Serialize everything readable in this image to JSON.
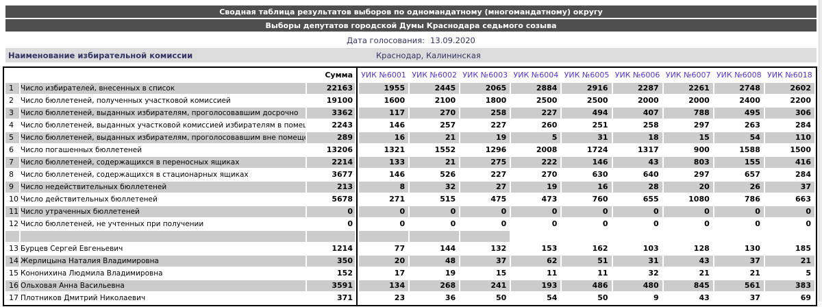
{
  "header": {
    "title1": "Сводная таблица результатов выборов по одномандатному (многомандатному) округу",
    "title2": "Выборы депутатов городской Думы Краснодара седьмого созыва",
    "date_label": "Дата голосования:",
    "date_value": "13.09.2020",
    "commission_label": "Наименование избирательной комиссии",
    "commission_value": "Краснодар, Калининская"
  },
  "colors": {
    "title_bar_bg": "#4f4f4f",
    "shaded_row_bg": "#cccccc",
    "commission_row_bg": "#dcdcdc",
    "navy_text": "#333366",
    "uik_link_color": "#5533cc"
  },
  "table": {
    "sum_header": "Сумма",
    "uik_headers": [
      "УИК №6001",
      "УИК №6002",
      "УИК №6003",
      "УИК №6004",
      "УИК №6005",
      "УИК №6006",
      "УИК №6007",
      "УИК №6008",
      "УИК №6018"
    ],
    "rows": [
      {
        "type": "data",
        "kind": "stat",
        "num": "1",
        "label": "Число избирателей, внесенных в список",
        "sum": "22163",
        "values": [
          "1955",
          "2445",
          "2065",
          "2884",
          "2916",
          "2287",
          "2261",
          "2748",
          "2602"
        ],
        "shaded": true
      },
      {
        "type": "data",
        "kind": "stat",
        "num": "2",
        "label": "Число бюллетеней, полученных участковой комиссией",
        "sum": "19100",
        "values": [
          "1600",
          "2100",
          "1800",
          "2500",
          "2500",
          "2000",
          "2000",
          "2400",
          "2200"
        ],
        "shaded": false
      },
      {
        "type": "data",
        "kind": "stat",
        "num": "3",
        "label": "Число бюллетеней, выданных избирателям, проголосовавшим досрочно",
        "sum": "3362",
        "values": [
          "117",
          "270",
          "258",
          "227",
          "494",
          "407",
          "788",
          "495",
          "306"
        ],
        "shaded": true
      },
      {
        "type": "data",
        "kind": "stat",
        "num": "4",
        "label": "Число бюллетеней, выданных участковой комиссией избирателям в помещении",
        "sum": "2243",
        "values": [
          "146",
          "257",
          "227",
          "260",
          "251",
          "258",
          "297",
          "263",
          "284"
        ],
        "shaded": false
      },
      {
        "type": "data",
        "kind": "stat",
        "num": "5",
        "label": "Число бюллетеней, выданных избирателям, проголосовавшим вне помещения",
        "sum": "289",
        "values": [
          "16",
          "21",
          "19",
          "5",
          "31",
          "18",
          "15",
          "54",
          "110"
        ],
        "shaded": true
      },
      {
        "type": "data",
        "kind": "stat",
        "num": "6",
        "label": "Число погашенных бюллетеней",
        "sum": "13206",
        "values": [
          "1321",
          "1552",
          "1296",
          "2008",
          "1724",
          "1317",
          "900",
          "1588",
          "1500"
        ],
        "shaded": false
      },
      {
        "type": "data",
        "kind": "stat",
        "num": "7",
        "label": "Число бюллетеней, содержащихся в переносных ящиках",
        "sum": "2214",
        "values": [
          "133",
          "21",
          "275",
          "222",
          "146",
          "43",
          "803",
          "155",
          "416"
        ],
        "shaded": true
      },
      {
        "type": "data",
        "kind": "stat",
        "num": "8",
        "label": "Число бюллетеней, содержащихся в стационарных ящиках",
        "sum": "3677",
        "values": [
          "146",
          "526",
          "227",
          "270",
          "630",
          "640",
          "297",
          "657",
          "284"
        ],
        "shaded": false
      },
      {
        "type": "data",
        "kind": "stat",
        "num": "9",
        "label": "Число недействительных бюллетеней",
        "sum": "213",
        "values": [
          "8",
          "32",
          "27",
          "19",
          "16",
          "28",
          "20",
          "26",
          "37"
        ],
        "shaded": true
      },
      {
        "type": "data",
        "kind": "stat",
        "num": "10",
        "label": "Число действительных бюллетеней",
        "sum": "5678",
        "values": [
          "271",
          "515",
          "475",
          "473",
          "760",
          "655",
          "1080",
          "786",
          "663"
        ],
        "shaded": false
      },
      {
        "type": "data",
        "kind": "stat",
        "num": "11",
        "label": "Число утраченных бюллетеней",
        "sum": "0",
        "values": [
          "0",
          "0",
          "0",
          "0",
          "0",
          "0",
          "0",
          "0",
          "0"
        ],
        "shaded": true
      },
      {
        "type": "data",
        "kind": "stat",
        "num": "12",
        "label": "Число бюллетеней, не учтенных при получении",
        "sum": "0",
        "values": [
          "0",
          "0",
          "0",
          "0",
          "0",
          "0",
          "0",
          "0",
          "0"
        ],
        "shaded": false
      },
      {
        "type": "separator",
        "shaded_uik_cells": 3
      },
      {
        "type": "data",
        "kind": "candidate",
        "num": "13",
        "label": "Бурцев Сергей Евгеньевич",
        "sum": "1214",
        "values": [
          "77",
          "144",
          "132",
          "153",
          "162",
          "103",
          "128",
          "130",
          "185"
        ],
        "shaded": false
      },
      {
        "type": "data",
        "kind": "candidate",
        "num": "14",
        "label": "Жерлицына Наталия Владимировна",
        "sum": "350",
        "values": [
          "20",
          "48",
          "37",
          "62",
          "51",
          "31",
          "43",
          "37",
          "21"
        ],
        "shaded": true
      },
      {
        "type": "data",
        "kind": "candidate",
        "num": "15",
        "label": "Кононихина Людмила Владимировна",
        "sum": "152",
        "values": [
          "17",
          "19",
          "15",
          "11",
          "11",
          "32",
          "21",
          "21",
          "5"
        ],
        "shaded": false
      },
      {
        "type": "data",
        "kind": "candidate",
        "num": "16",
        "label": "Ольховая Анна Васильевна",
        "sum": "3591",
        "values": [
          "134",
          "268",
          "241",
          "193",
          "486",
          "480",
          "845",
          "561",
          "383"
        ],
        "shaded": true
      },
      {
        "type": "data",
        "kind": "candidate",
        "num": "17",
        "label": "Плотников Дмитрий Николаевич",
        "sum": "371",
        "values": [
          "23",
          "36",
          "50",
          "54",
          "50",
          "9",
          "43",
          "37",
          "69"
        ],
        "shaded": false
      }
    ]
  }
}
